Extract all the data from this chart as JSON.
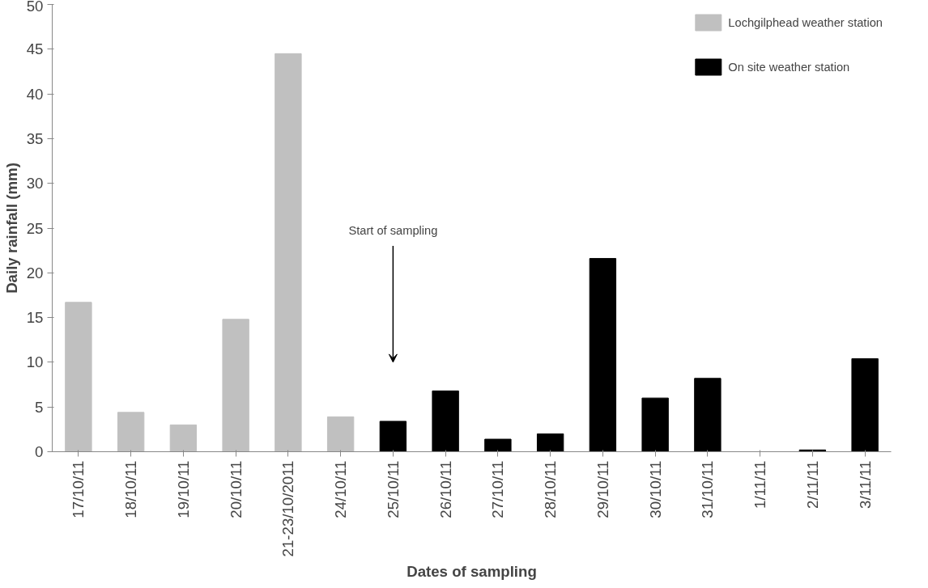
{
  "chart_data": {
    "type": "bar",
    "xlabel": "Dates of sampling",
    "ylabel": "Daily rainfall (mm)",
    "categories": [
      "17/10/11",
      "18/10/11",
      "19/10/11",
      "20/10/11",
      "21-23/10/2011",
      "24/10/11",
      "25/10/11",
      "26/10/11",
      "27/10/11",
      "28/10/11",
      "29/10/11",
      "30/10/11",
      "31/10/11",
      "1/11/11",
      "2/11/11",
      "3/11/11"
    ],
    "series": [
      {
        "name": "Lochgilphead weather station",
        "color": "#c0c0c0",
        "values": [
          16.7,
          4.4,
          3.0,
          14.8,
          44.5,
          3.9,
          null,
          null,
          null,
          null,
          null,
          null,
          null,
          null,
          null,
          null
        ]
      },
      {
        "name": "On site weather station",
        "color": "#000000",
        "values": [
          null,
          null,
          null,
          null,
          null,
          null,
          3.4,
          6.8,
          1.4,
          2.0,
          21.6,
          6.0,
          8.2,
          0.0,
          0.2,
          10.4
        ]
      }
    ],
    "ylim": [
      0,
      50
    ],
    "yticks": [
      0,
      5,
      10,
      15,
      20,
      25,
      30,
      35,
      40,
      45,
      50
    ],
    "grid": false,
    "legend": "top right",
    "annotations": [
      "Start of sampling"
    ]
  }
}
